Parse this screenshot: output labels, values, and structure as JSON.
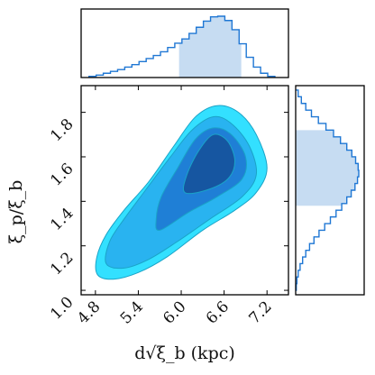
{
  "chart_data": {
    "type": "corner",
    "xlabel": "d√ξ_b (kpc)",
    "ylabel": "ξ_p/ξ_b",
    "x_ticks": [
      "4.8",
      "5.4",
      "6.0",
      "6.6",
      "7.2"
    ],
    "y_ticks": [
      "1.0",
      "1.2",
      "1.4",
      "1.6",
      "1.8"
    ],
    "xlim": [
      4.6,
      7.5
    ],
    "ylim": [
      0.98,
      1.92
    ],
    "colors": {
      "line": "#1f77d4",
      "shade": "#c6dcf2",
      "contour_levels": [
        "#33e0ff",
        "#29b3f0",
        "#1f7fd6",
        "#1656a1"
      ],
      "contour_edge": "#1aa3c7"
    },
    "contours": [
      {
        "level": "outer",
        "points": [
          [
            4.83,
            1.07
          ],
          [
            5.05,
            1.05
          ],
          [
            5.4,
            1.08
          ],
          [
            5.8,
            1.15
          ],
          [
            6.3,
            1.27
          ],
          [
            6.75,
            1.36
          ],
          [
            7.05,
            1.44
          ],
          [
            7.2,
            1.55
          ],
          [
            7.05,
            1.7
          ],
          [
            6.8,
            1.8
          ],
          [
            6.5,
            1.83
          ],
          [
            6.2,
            1.78
          ],
          [
            5.9,
            1.65
          ],
          [
            5.55,
            1.49
          ],
          [
            5.2,
            1.36
          ],
          [
            4.95,
            1.25
          ],
          [
            4.82,
            1.15
          ]
        ]
      },
      {
        "level": "second",
        "points": [
          [
            4.95,
            1.12
          ],
          [
            5.2,
            1.1
          ],
          [
            5.55,
            1.14
          ],
          [
            5.95,
            1.22
          ],
          [
            6.4,
            1.32
          ],
          [
            6.85,
            1.42
          ],
          [
            7.05,
            1.52
          ],
          [
            6.95,
            1.65
          ],
          [
            6.7,
            1.75
          ],
          [
            6.45,
            1.78
          ],
          [
            6.15,
            1.72
          ],
          [
            5.85,
            1.6
          ],
          [
            5.5,
            1.45
          ],
          [
            5.2,
            1.32
          ],
          [
            5.0,
            1.22
          ]
        ]
      },
      {
        "level": "third",
        "points": [
          [
            5.7,
            1.27
          ],
          [
            6.1,
            1.35
          ],
          [
            6.5,
            1.42
          ],
          [
            6.85,
            1.5
          ],
          [
            6.9,
            1.6
          ],
          [
            6.7,
            1.7
          ],
          [
            6.45,
            1.73
          ],
          [
            6.2,
            1.68
          ],
          [
            5.95,
            1.55
          ],
          [
            5.72,
            1.42
          ],
          [
            5.65,
            1.32
          ]
        ]
      },
      {
        "level": "inner",
        "points": [
          [
            6.05,
            1.44
          ],
          [
            6.35,
            1.45
          ],
          [
            6.65,
            1.5
          ],
          [
            6.75,
            1.58
          ],
          [
            6.65,
            1.67
          ],
          [
            6.45,
            1.7
          ],
          [
            6.25,
            1.63
          ],
          [
            6.08,
            1.52
          ]
        ]
      }
    ],
    "x_marginal": {
      "bins": [
        4.71,
        4.81,
        4.91,
        5.01,
        5.11,
        5.21,
        5.31,
        5.41,
        5.51,
        5.61,
        5.71,
        5.81,
        5.91,
        6.01,
        6.11,
        6.21,
        6.31,
        6.41,
        6.51,
        6.61,
        6.71,
        6.81,
        6.91,
        7.01,
        7.11,
        7.21,
        7.31
      ],
      "values": [
        0.02,
        0.04,
        0.07,
        0.1,
        0.13,
        0.17,
        0.21,
        0.26,
        0.31,
        0.36,
        0.42,
        0.49,
        0.56,
        0.63,
        0.72,
        0.82,
        0.92,
        0.99,
        1.0,
        0.93,
        0.78,
        0.55,
        0.33,
        0.17,
        0.07,
        0.02,
        0.0
      ],
      "shade_range": [
        5.97,
        6.84
      ]
    },
    "y_marginal": {
      "bins": [
        1.0,
        1.03,
        1.06,
        1.09,
        1.12,
        1.15,
        1.18,
        1.21,
        1.24,
        1.27,
        1.3,
        1.33,
        1.36,
        1.39,
        1.42,
        1.45,
        1.48,
        1.51,
        1.54,
        1.57,
        1.6,
        1.63,
        1.66,
        1.69,
        1.72,
        1.75,
        1.78,
        1.81,
        1.84,
        1.87,
        1.9
      ],
      "values": [
        0.01,
        0.02,
        0.04,
        0.07,
        0.11,
        0.16,
        0.22,
        0.29,
        0.37,
        0.46,
        0.55,
        0.64,
        0.73,
        0.81,
        0.88,
        0.94,
        0.98,
        1.0,
        0.99,
        0.95,
        0.89,
        0.81,
        0.71,
        0.6,
        0.48,
        0.36,
        0.25,
        0.16,
        0.09,
        0.04,
        0.01
      ],
      "shade_range": [
        1.38,
        1.72
      ]
    }
  }
}
